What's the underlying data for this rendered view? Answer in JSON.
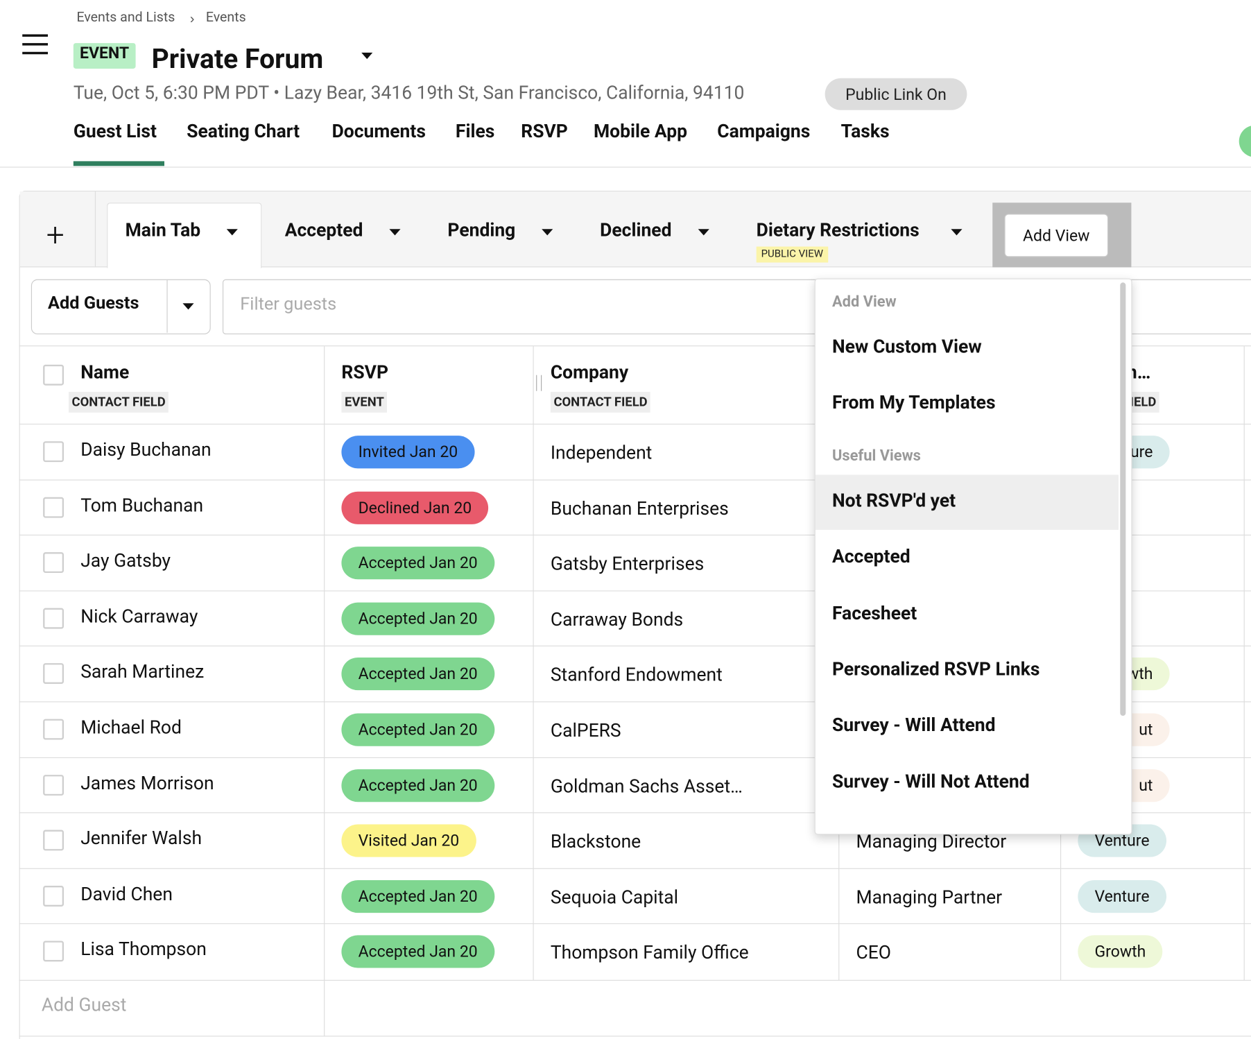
{
  "breadcrumb": [
    "Events and Lists",
    "Events"
  ],
  "header": {
    "badge": "EVENT",
    "title": "Private Forum",
    "subtitle": "Tue, Oct 5, 6:30 PM PDT • Lazy Bear, 3416 19th St, San Francisco, California, 94110",
    "public_link": "Public Link On"
  },
  "nav_tabs": [
    "Guest List",
    "Seating Chart",
    "Documents",
    "Files",
    "RSVP",
    "Mobile App",
    "Campaigns",
    "Tasks"
  ],
  "views": {
    "plus": "+",
    "tabs": [
      {
        "name": "Main Tab"
      },
      {
        "name": "Accepted"
      },
      {
        "name": "Pending"
      },
      {
        "name": "Declined"
      },
      {
        "name": "Dietary Restrictions",
        "badge": "PUBLIC VIEW"
      }
    ],
    "add_view": "Add View"
  },
  "toolbar": {
    "add_guests": "Add Guests",
    "filter_placeholder": "Filter guests"
  },
  "table": {
    "columns": [
      {
        "name": "Name",
        "sub": "CONTACT FIELD"
      },
      {
        "name": "RSVP",
        "sub": "EVENT"
      },
      {
        "name": "Company",
        "sub": "CONTACT FIELD"
      },
      {
        "name": "men…",
        "sub": "CT FIELD"
      }
    ],
    "rows": [
      {
        "name": "Daisy Buchanan",
        "rsvp": "Invited Jan 20",
        "rsvp_color": "#4a8ff0",
        "company": "Independent",
        "tag": "ure",
        "tag_color": "#d9ecec"
      },
      {
        "name": "Tom Buchanan",
        "rsvp": "Declined Jan 20",
        "rsvp_color": "#e85a6b",
        "company": "Buchanan Enterprises"
      },
      {
        "name": "Jay Gatsby",
        "rsvp": "Accepted Jan 20",
        "rsvp_color": "#7fd690",
        "company": "Gatsby Enterprises"
      },
      {
        "name": "Nick Carraway",
        "rsvp": "Accepted Jan 20",
        "rsvp_color": "#7fd690",
        "company": "Carraway Bonds"
      },
      {
        "name": "Sarah Martinez",
        "rsvp": "Accepted Jan 20",
        "rsvp_color": "#7fd690",
        "company": "Stanford Endowment",
        "tag": "wth",
        "tag_color": "#eef8d8"
      },
      {
        "name": "Michael Rod",
        "rsvp": "Accepted Jan 20",
        "rsvp_color": "#7fd690",
        "company": "CalPERS",
        "tag": "ut",
        "tag_color": "#fbf1ea"
      },
      {
        "name": "James Morrison",
        "rsvp": "Accepted Jan 20",
        "rsvp_color": "#7fd690",
        "company": "Goldman Sachs Asset…",
        "tag": "ut",
        "tag_color": "#fbf1ea"
      },
      {
        "name": "Jennifer Walsh",
        "rsvp": "Visited Jan 20",
        "rsvp_color": "#fcf38a",
        "company": "Blackstone",
        "title": "Managing Director",
        "tag": "Venture",
        "tag_color": "#d9ecec"
      },
      {
        "name": "David Chen",
        "rsvp": "Accepted Jan 20",
        "rsvp_color": "#7fd690",
        "company": "Sequoia Capital",
        "title": "Managing Partner",
        "tag": "Venture",
        "tag_color": "#d9ecec"
      },
      {
        "name": "Lisa Thompson",
        "rsvp": "Accepted Jan 20",
        "rsvp_color": "#7fd690",
        "company": "Thompson Family Office",
        "title": "CEO",
        "tag": "Growth",
        "tag_color": "#eef8d8"
      }
    ],
    "add_guest": "Add Guest"
  },
  "dropdown": {
    "heading": "Add View",
    "items": [
      "New Custom View",
      "From My Templates"
    ],
    "section": "Useful Views",
    "useful_items": [
      "Not RSVP'd yet",
      "Accepted",
      "Facesheet",
      "Personalized RSVP Links",
      "Survey - Will Attend",
      "Survey - Will Not Attend"
    ]
  }
}
